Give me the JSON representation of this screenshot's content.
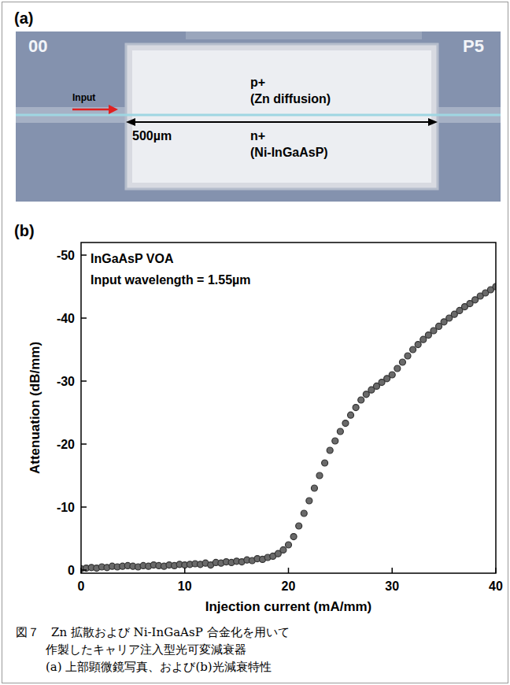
{
  "panel_letters": [
    "(a)",
    "(b)"
  ],
  "photo": {
    "corner_left": "00",
    "corner_right": "P5",
    "input": "Input",
    "p_label": "p+",
    "p_note": "(Zn diffusion)",
    "length": "500µm",
    "n_label": "n+",
    "n_note": "(Ni-InGaAsP)"
  },
  "chart_data": {
    "type": "scatter",
    "annotations": [
      "InGaAsP VOA",
      "Input wavelength = 1.55µm"
    ],
    "x_label": "Injection current (mA/mm)",
    "y_label": "Attenuation (dB/mm)",
    "xlim": [
      0,
      40
    ],
    "xticks": [
      0,
      10,
      20,
      30,
      40
    ],
    "ylim": [
      0.5,
      -52
    ],
    "yticks": [
      0,
      -10,
      -20,
      -30,
      -40,
      -50
    ],
    "grid": false,
    "x": [
      0,
      0.5,
      1,
      1.5,
      2,
      2.5,
      3,
      3.5,
      4,
      4.5,
      5,
      5.5,
      6,
      6.5,
      7,
      7.5,
      8,
      8.5,
      9,
      9.5,
      10,
      10.5,
      11,
      11.5,
      12,
      12.5,
      13,
      13.5,
      14,
      14.5,
      15,
      15.5,
      16,
      16.5,
      17,
      17.5,
      18,
      18.5,
      19,
      19.5,
      20,
      20.5,
      21,
      21.5,
      22,
      22.5,
      23,
      23.5,
      24,
      24.5,
      25,
      25.5,
      26,
      26.5,
      27,
      27.5,
      28,
      28.5,
      29,
      29.5,
      30,
      30.5,
      31,
      31.5,
      32,
      32.5,
      33,
      33.5,
      34,
      34.5,
      35,
      35.5,
      36,
      36.5,
      37,
      37.5,
      38,
      38.5,
      39,
      39.5,
      40
    ],
    "series": [
      {
        "name": "InGaAsP VOA",
        "color": "#333333",
        "marker": "circle",
        "values": [
          -0.2,
          -0.3,
          -0.4,
          -0.3,
          -0.5,
          -0.4,
          -0.6,
          -0.5,
          -0.6,
          -0.7,
          -0.6,
          -0.5,
          -0.7,
          -0.6,
          -0.8,
          -0.7,
          -0.6,
          -0.8,
          -0.7,
          -0.9,
          -0.8,
          -0.9,
          -1.0,
          -0.9,
          -1.1,
          -0.8,
          -1.2,
          -1.1,
          -1.3,
          -1.2,
          -1.4,
          -1.3,
          -1.6,
          -1.5,
          -1.8,
          -1.7,
          -2.0,
          -2.2,
          -2.6,
          -3.2,
          -4.0,
          -5.3,
          -7.0,
          -9.0,
          -11.0,
          -13.0,
          -15.0,
          -17.0,
          -19.0,
          -20.5,
          -22.0,
          -23.3,
          -24.6,
          -25.8,
          -27.0,
          -27.9,
          -28.6,
          -29.2,
          -29.8,
          -30.4,
          -31.0,
          -32.0,
          -33.0,
          -34.0,
          -35.0,
          -35.8,
          -36.6,
          -37.3,
          -38.0,
          -38.7,
          -39.4,
          -40.0,
          -40.6,
          -41.2,
          -41.8,
          -42.3,
          -42.9,
          -43.5,
          -44.0,
          -44.5,
          -45.0
        ]
      }
    ]
  },
  "caption": [
    "図７　Zn 拡散および Ni-InGaAsP 合金化を用いて",
    "作製したキャリア注入型光可変減衰器",
    "(a) 上部顕微鏡写真、および(b)光減衰特性"
  ]
}
